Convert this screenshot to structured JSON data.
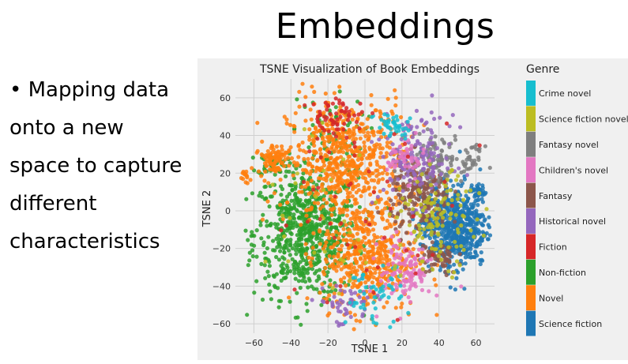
{
  "slide": {
    "title": "Embeddings",
    "bullets": [
      "• Mapping data",
      "onto a new",
      "space to capture",
      "different",
      "characteristics"
    ]
  },
  "chart_data": {
    "type": "scatter",
    "title": "TSNE Visualization of Book Embeddings",
    "xlabel": "TSNE 1",
    "ylabel": "TSNE 2",
    "xlim": [
      -70,
      70
    ],
    "ylim": [
      -65,
      70
    ],
    "xticks": [
      -60,
      -40,
      -20,
      0,
      20,
      40,
      60
    ],
    "yticks": [
      -60,
      -40,
      -20,
      0,
      20,
      40,
      60
    ],
    "xtick_labels": [
      "−60",
      "−40",
      "−20",
      "0",
      "20",
      "40",
      "60"
    ],
    "ytick_labels": [
      "−60",
      "−40",
      "−20",
      "0",
      "20",
      "40",
      "60"
    ],
    "grid": true,
    "background": "#f0f0f0",
    "legend": {
      "title": "Genre",
      "placement": "outside-right",
      "entries": [
        {
          "label": "Crime novel",
          "color": "#17becf"
        },
        {
          "label": "Science fiction novel",
          "color": "#bcbd22"
        },
        {
          "label": "Fantasy novel",
          "color": "#7f7f7f"
        },
        {
          "label": "Children's novel",
          "color": "#e377c2"
        },
        {
          "label": "Fantasy",
          "color": "#8c564b"
        },
        {
          "label": "Historical novel",
          "color": "#9467bd"
        },
        {
          "label": "Fiction",
          "color": "#d62728"
        },
        {
          "label": "Non-fiction",
          "color": "#2ca02c"
        },
        {
          "label": "Novel",
          "color": "#ff7f0e"
        },
        {
          "label": "Science fiction",
          "color": "#1f77b4"
        }
      ]
    },
    "clusters": [
      {
        "series": "Non-fiction",
        "color": "#2ca02c",
        "cx": -32,
        "cy": -12,
        "sx": 14,
        "sy": 17,
        "n": 700
      },
      {
        "series": "Non-fiction",
        "color": "#2ca02c",
        "cx": -50,
        "cy": 25,
        "sx": 4,
        "sy": 3,
        "n": 40
      },
      {
        "series": "Non-fiction",
        "color": "#2ca02c",
        "cx": -20,
        "cy": 40,
        "sx": 10,
        "sy": 10,
        "n": 60
      },
      {
        "series": "Novel",
        "color": "#ff7f0e",
        "cx": -10,
        "cy": 25,
        "sx": 16,
        "sy": 17,
        "n": 650
      },
      {
        "series": "Novel",
        "color": "#ff7f0e",
        "cx": 2,
        "cy": -25,
        "sx": 13,
        "sy": 14,
        "n": 450
      },
      {
        "series": "Novel",
        "color": "#ff7f0e",
        "cx": -50,
        "cy": 28,
        "sx": 4,
        "sy": 4,
        "n": 80
      },
      {
        "series": "Novel",
        "color": "#ff7f0e",
        "cx": -65,
        "cy": 18,
        "sx": 1.5,
        "sy": 1.5,
        "n": 15
      },
      {
        "series": "Science fiction",
        "color": "#1f77b4",
        "cx": 48,
        "cy": -8,
        "sx": 9,
        "sy": 11,
        "n": 650
      },
      {
        "series": "Science fiction",
        "color": "#1f77b4",
        "cx": 62,
        "cy": 10,
        "sx": 2,
        "sy": 2,
        "n": 30
      },
      {
        "series": "Fantasy",
        "color": "#8c564b",
        "cx": 30,
        "cy": 8,
        "sx": 8,
        "sy": 10,
        "n": 220
      },
      {
        "series": "Fantasy",
        "color": "#8c564b",
        "cx": 40,
        "cy": -25,
        "sx": 5,
        "sy": 5,
        "n": 60
      },
      {
        "series": "Fantasy novel",
        "color": "#7f7f7f",
        "cx": 38,
        "cy": 28,
        "sx": 8,
        "sy": 6,
        "n": 90
      },
      {
        "series": "Fantasy novel",
        "color": "#7f7f7f",
        "cx": 58,
        "cy": 28,
        "sx": 3,
        "sy": 3,
        "n": 30
      },
      {
        "series": "Historical novel",
        "color": "#9467bd",
        "cx": 28,
        "cy": 28,
        "sx": 10,
        "sy": 12,
        "n": 140
      },
      {
        "series": "Historical novel",
        "color": "#9467bd",
        "cx": -10,
        "cy": -50,
        "sx": 8,
        "sy": 6,
        "n": 50
      },
      {
        "series": "Children's novel",
        "color": "#e377c2",
        "cx": 22,
        "cy": -32,
        "sx": 7,
        "sy": 9,
        "n": 120
      },
      {
        "series": "Children's novel",
        "color": "#e377c2",
        "cx": 22,
        "cy": 28,
        "sx": 5,
        "sy": 6,
        "n": 50
      },
      {
        "series": "Crime novel",
        "color": "#17becf",
        "cx": 15,
        "cy": 45,
        "sx": 5,
        "sy": 4,
        "n": 40
      },
      {
        "series": "Crime novel",
        "color": "#17becf",
        "cx": 5,
        "cy": -45,
        "sx": 8,
        "sy": 8,
        "n": 50
      },
      {
        "series": "Science fiction novel",
        "color": "#bcbd22",
        "cx": 40,
        "cy": -5,
        "sx": 10,
        "sy": 12,
        "n": 120
      },
      {
        "series": "Science fiction novel",
        "color": "#bcbd22",
        "cx": -10,
        "cy": 0,
        "sx": 25,
        "sy": 25,
        "n": 40
      },
      {
        "series": "Fiction",
        "color": "#d62728",
        "cx": -15,
        "cy": 50,
        "sx": 8,
        "sy": 5,
        "n": 60
      },
      {
        "series": "Fiction",
        "color": "#d62728",
        "cx": 0,
        "cy": 0,
        "sx": 25,
        "sy": 25,
        "n": 50
      }
    ]
  }
}
